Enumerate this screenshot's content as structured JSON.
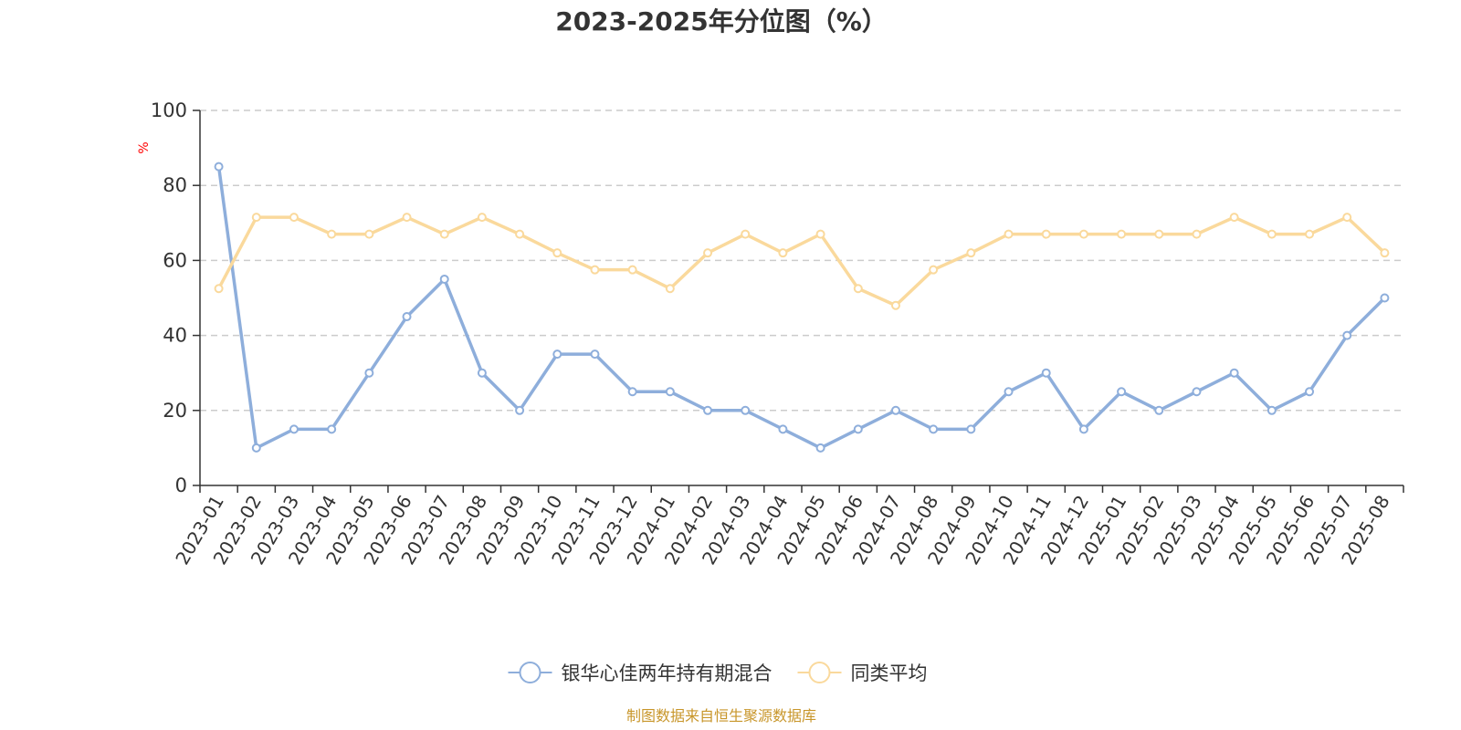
{
  "chart_data": {
    "type": "line",
    "title": "2023-2025年分位图（%）",
    "y_unit": "%",
    "ylim": [
      0,
      100
    ],
    "y_ticks": [
      0,
      20,
      40,
      60,
      80,
      100
    ],
    "grid": "horizontal dashed",
    "legend_position": "bottom",
    "categories": [
      "2023-01",
      "2023-02",
      "2023-03",
      "2023-04",
      "2023-05",
      "2023-06",
      "2023-07",
      "2023-08",
      "2023-09",
      "2023-10",
      "2023-11",
      "2023-12",
      "2024-01",
      "2024-02",
      "2024-03",
      "2024-04",
      "2024-05",
      "2024-06",
      "2024-07",
      "2024-08",
      "2024-09",
      "2024-10",
      "2024-11",
      "2024-12",
      "2025-01",
      "2025-02",
      "2025-03",
      "2025-04",
      "2025-05",
      "2025-06",
      "2025-07",
      "2025-08"
    ],
    "series": [
      {
        "name": "银华心佳两年持有期混合",
        "color": "#8eaedb",
        "values": [
          85,
          10,
          15,
          15,
          30,
          45,
          55,
          30,
          20,
          35,
          35,
          25,
          25,
          20,
          20,
          15,
          10,
          15,
          20,
          15,
          15,
          25,
          30,
          15,
          25,
          20,
          25,
          30,
          20,
          25,
          40,
          50
        ]
      },
      {
        "name": "同类平均",
        "color": "#fad99c",
        "values": [
          52.5,
          71.5,
          71.5,
          67,
          67,
          71.5,
          67,
          71.5,
          67,
          62,
          57.5,
          57.5,
          52.5,
          62,
          67,
          62,
          67,
          52.5,
          48,
          57.5,
          62,
          67,
          67,
          67,
          67,
          67,
          67,
          71.5,
          67,
          67,
          71.5,
          62
        ]
      }
    ],
    "source": "制图数据来自恒生聚源数据库"
  }
}
